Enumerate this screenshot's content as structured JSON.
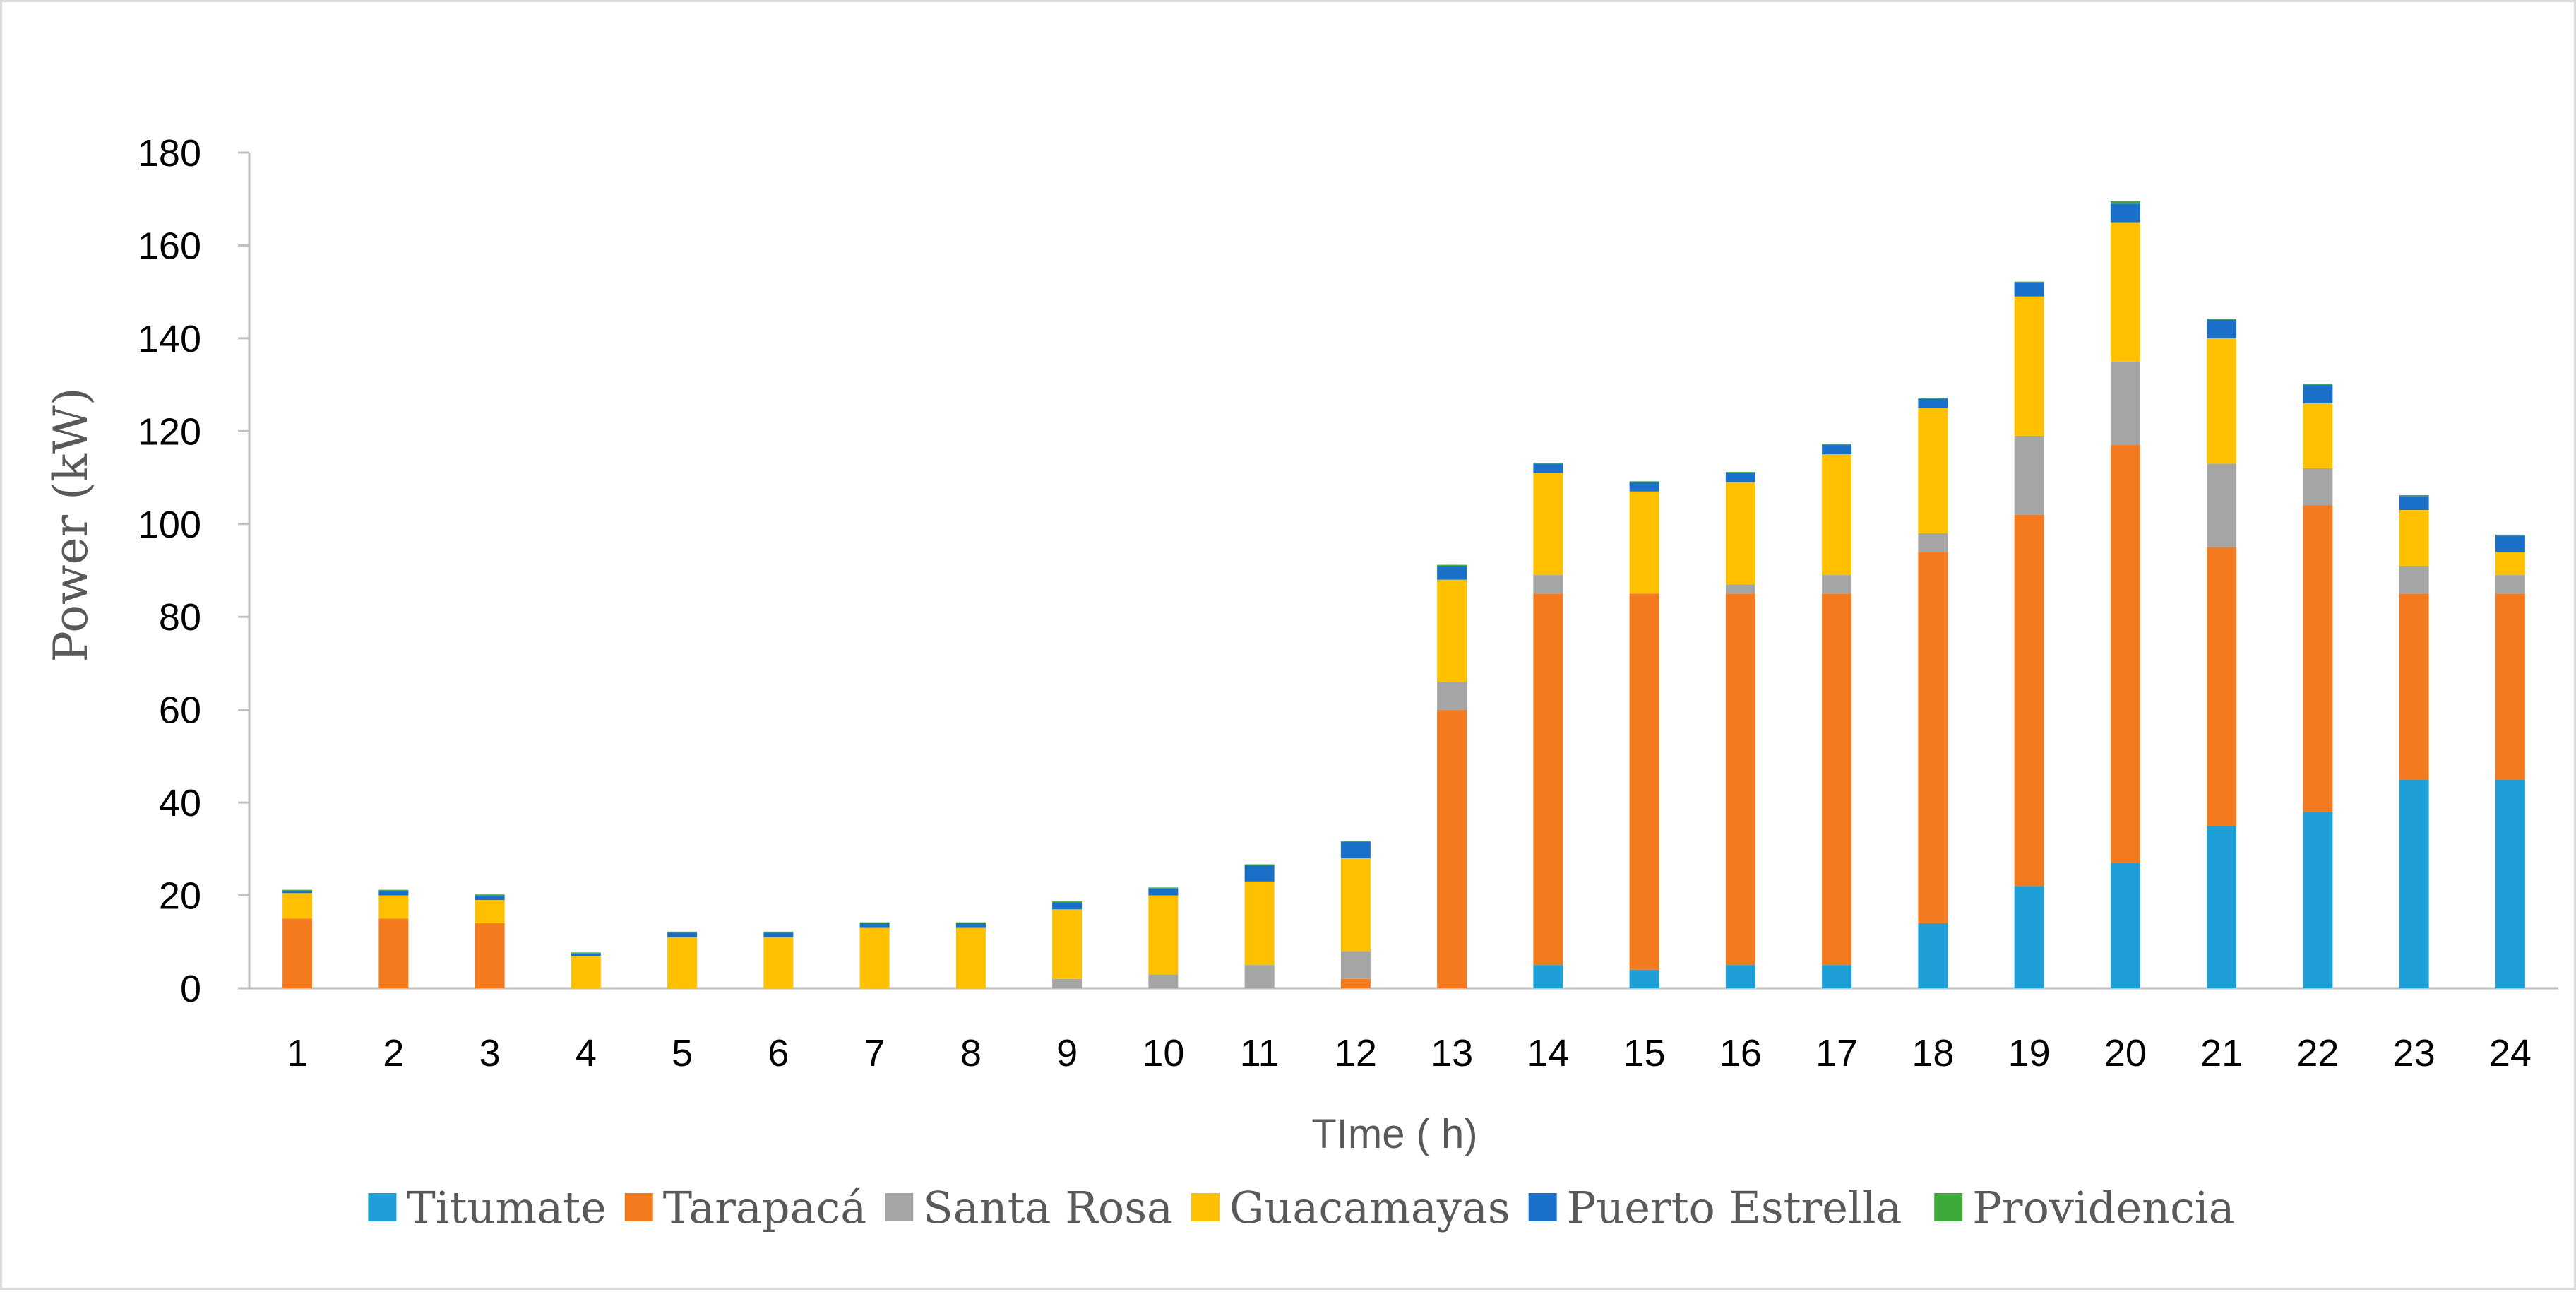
{
  "chart_data": {
    "type": "bar",
    "stacked": true,
    "title": "",
    "xlabel": "TIme ( h)",
    "ylabel": "Power (kW)",
    "ylim": [
      0,
      180
    ],
    "yticks": [
      0,
      20,
      40,
      60,
      80,
      100,
      120,
      140,
      160,
      180
    ],
    "categories": [
      "1",
      "2",
      "3",
      "4",
      "5",
      "6",
      "7",
      "8",
      "9",
      "10",
      "11",
      "12",
      "13",
      "14",
      "15",
      "16",
      "17",
      "18",
      "19",
      "20",
      "21",
      "22",
      "23",
      "24"
    ],
    "legend_position": "bottom",
    "series": [
      {
        "name": "Titumate",
        "color": "#1f9fd8",
        "values": [
          0,
          0,
          0,
          0,
          0,
          0,
          0,
          0,
          0,
          0,
          0,
          0,
          0,
          5,
          4,
          5,
          5,
          14,
          22,
          27,
          35,
          38,
          45,
          45
        ]
      },
      {
        "name": "Tarapacá",
        "color": "#f47a20",
        "values": [
          15,
          15,
          14,
          0,
          0,
          0,
          0,
          0,
          0,
          0,
          0,
          2,
          60,
          80,
          81,
          80,
          80,
          80,
          80,
          90,
          60,
          66,
          40,
          40
        ]
      },
      {
        "name": "Santa Rosa",
        "color": "#a5a5a5",
        "values": [
          0,
          0,
          0,
          0,
          0,
          0,
          0,
          0,
          2,
          3,
          5,
          6,
          6,
          4,
          0,
          2,
          4,
          4,
          17,
          18,
          18,
          8,
          6,
          4
        ]
      },
      {
        "name": "Guacamayas",
        "color": "#ffc000",
        "values": [
          5.5,
          5,
          5,
          7,
          11,
          11,
          13,
          13,
          15,
          17,
          18,
          20,
          22,
          22,
          22,
          22,
          26,
          27,
          30,
          30,
          27,
          14,
          12,
          5
        ]
      },
      {
        "name": "Puerto  Estrella",
        "color": "#1a6fc9",
        "values": [
          0.5,
          1,
          1,
          0.5,
          1,
          1,
          1,
          1,
          1.5,
          1.5,
          3.5,
          3.5,
          3,
          2,
          2,
          2,
          2,
          2,
          3,
          4,
          4,
          4,
          3,
          3.5
        ]
      },
      {
        "name": "Providencia",
        "color": "#3daa3a",
        "values": [
          0.2,
          0.2,
          0.2,
          0.2,
          0.2,
          0.2,
          0.2,
          0.2,
          0.2,
          0.2,
          0.2,
          0.2,
          0.2,
          0.2,
          0.2,
          0.2,
          0.2,
          0.2,
          0.2,
          0.5,
          0.2,
          0.2,
          0.2,
          0.2
        ]
      }
    ]
  }
}
